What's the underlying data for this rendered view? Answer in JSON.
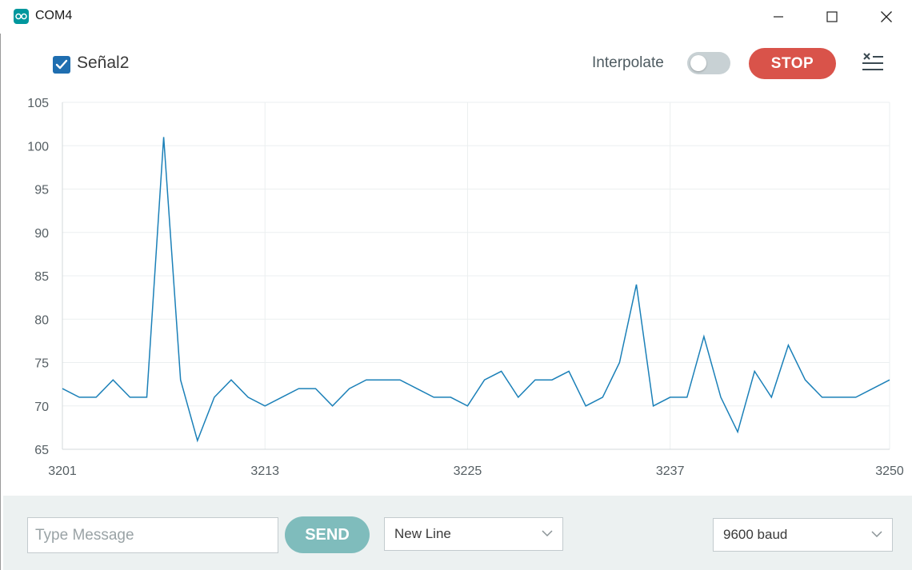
{
  "window": {
    "title": "COM4",
    "controls": [
      "minimize",
      "maximize",
      "close"
    ]
  },
  "toolbar": {
    "series_checkbox_checked": true,
    "series_label": "Señal2",
    "interpolate_label": "Interpolate",
    "interpolate_on": false,
    "stop_label": "STOP",
    "clear_icon": "clear-list-icon"
  },
  "chart_data": {
    "type": "line",
    "x": [
      3201,
      3202,
      3203,
      3204,
      3205,
      3206,
      3207,
      3208,
      3209,
      3210,
      3211,
      3212,
      3213,
      3214,
      3215,
      3216,
      3217,
      3218,
      3219,
      3220,
      3221,
      3222,
      3223,
      3224,
      3225,
      3226,
      3227,
      3228,
      3229,
      3230,
      3231,
      3232,
      3233,
      3234,
      3235,
      3236,
      3237,
      3238,
      3239,
      3240,
      3241,
      3242,
      3243,
      3244,
      3245,
      3246,
      3247,
      3248,
      3249,
      3250
    ],
    "series": [
      {
        "name": "Señal2",
        "color": "#1b80b8",
        "values": [
          72,
          71,
          71,
          73,
          71,
          71,
          101,
          73,
          66,
          71,
          73,
          71,
          70,
          71,
          72,
          72,
          70,
          72,
          73,
          73,
          73,
          72,
          71,
          71,
          70,
          73,
          74,
          71,
          73,
          73,
          74,
          70,
          71,
          75,
          84,
          70,
          71,
          71,
          78,
          71,
          67,
          74,
          71,
          77,
          73,
          71,
          71,
          71,
          72,
          73
        ]
      }
    ],
    "xticks": [
      "3201",
      "3213",
      "3225",
      "3237",
      "3250"
    ],
    "yticks": [
      "65",
      "70",
      "75",
      "80",
      "85",
      "90",
      "95",
      "100",
      "105"
    ],
    "xlim": [
      3201,
      3250
    ],
    "ylim": [
      65,
      105
    ],
    "grid": true
  },
  "bottom": {
    "message_placeholder": "Type Message",
    "message_value": "",
    "send_label": "SEND",
    "line_ending": "New Line",
    "baud_rate": "9600 baud"
  }
}
